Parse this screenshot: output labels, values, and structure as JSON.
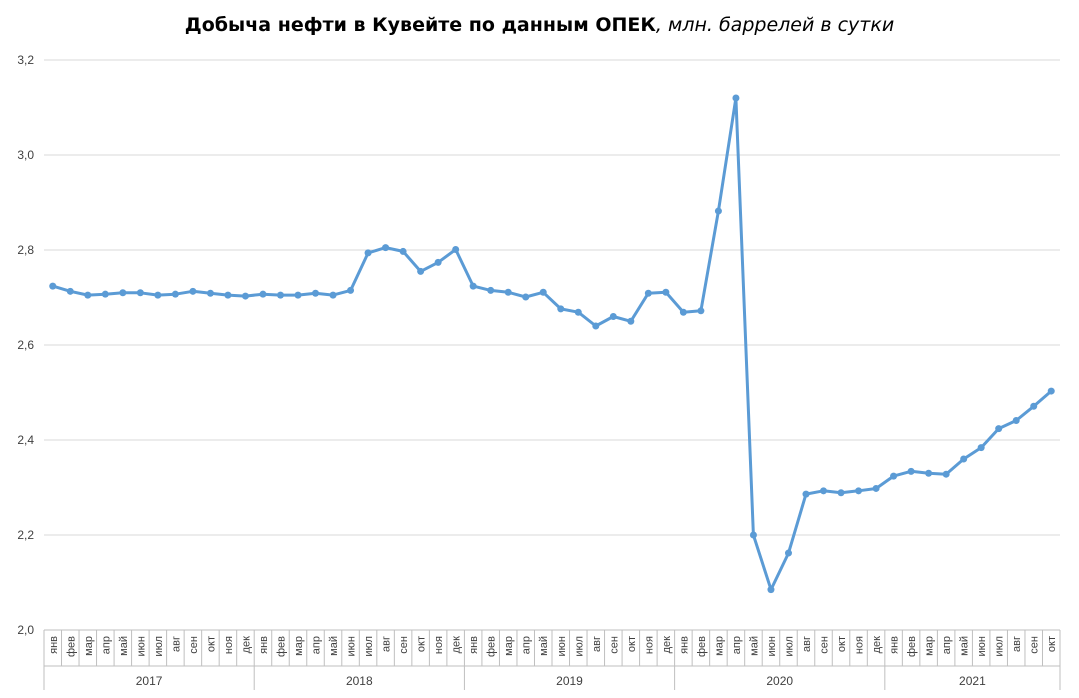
{
  "chart_data": {
    "type": "line",
    "title": "Добыча нефти в Кувейте по данным ОПЕК",
    "subtitle": ", млн. баррелей в сутки",
    "xlabel": "",
    "ylabel": "",
    "ylim": [
      2.0,
      3.2
    ],
    "yticks": [
      "2,0",
      "2,2",
      "2,4",
      "2,6",
      "2,8",
      "3,0",
      "3,2"
    ],
    "ytick_values": [
      2.0,
      2.2,
      2.4,
      2.6,
      2.8,
      3.0,
      3.2
    ],
    "grid": true,
    "legend": "none",
    "color": "#5b9bd5",
    "months": [
      "янв",
      "фев",
      "мар",
      "апр",
      "май",
      "июн",
      "июл",
      "авг",
      "сен",
      "окт",
      "ноя",
      "дек"
    ],
    "years": [
      "2017",
      "2018",
      "2019",
      "2020",
      "2021"
    ],
    "x_months": [
      "янв",
      "фев",
      "мар",
      "апр",
      "май",
      "июн",
      "июл",
      "авг",
      "сен",
      "окт",
      "ноя",
      "дек",
      "янв",
      "фев",
      "мар",
      "апр",
      "май",
      "июн",
      "июл",
      "авг",
      "сен",
      "окт",
      "ноя",
      "дек",
      "янв",
      "фев",
      "мар",
      "апр",
      "май",
      "июн",
      "июл",
      "авг",
      "сен",
      "окт",
      "ноя",
      "дек",
      "янв",
      "фев",
      "мар",
      "апр",
      "май",
      "июн",
      "июл",
      "авг",
      "сен",
      "окт",
      "ноя",
      "дек",
      "янв",
      "фев",
      "мар",
      "апр",
      "май",
      "июн",
      "июл",
      "авг",
      "сен",
      "окт"
    ],
    "x_years": [
      "2017",
      "2017",
      "2017",
      "2017",
      "2017",
      "2017",
      "2017",
      "2017",
      "2017",
      "2017",
      "2017",
      "2017",
      "2018",
      "2018",
      "2018",
      "2018",
      "2018",
      "2018",
      "2018",
      "2018",
      "2018",
      "2018",
      "2018",
      "2018",
      "2019",
      "2019",
      "2019",
      "2019",
      "2019",
      "2019",
      "2019",
      "2019",
      "2019",
      "2019",
      "2019",
      "2019",
      "2020",
      "2020",
      "2020",
      "2020",
      "2020",
      "2020",
      "2020",
      "2020",
      "2020",
      "2020",
      "2020",
      "2020",
      "2021",
      "2021",
      "2021",
      "2021",
      "2021",
      "2021",
      "2021",
      "2021",
      "2021",
      "2021"
    ],
    "series": [
      {
        "values": [
          2.724,
          2.713,
          2.705,
          2.707,
          2.71,
          2.71,
          2.705,
          2.707,
          2.713,
          2.709,
          2.705,
          2.703,
          2.707,
          2.705,
          2.705,
          2.709,
          2.705,
          2.715,
          2.794,
          2.805,
          2.797,
          2.755,
          2.774,
          2.801,
          2.724,
          2.715,
          2.711,
          2.701,
          2.711,
          2.676,
          2.669,
          2.64,
          2.66,
          2.65,
          2.709,
          2.711,
          2.669,
          2.672,
          2.882,
          3.12,
          2.2,
          2.085,
          2.162,
          2.286,
          2.293,
          2.289,
          2.293,
          2.298,
          2.324,
          2.334,
          2.33,
          2.328,
          2.36,
          2.384,
          2.424,
          2.441,
          2.471,
          2.503
        ]
      }
    ]
  }
}
